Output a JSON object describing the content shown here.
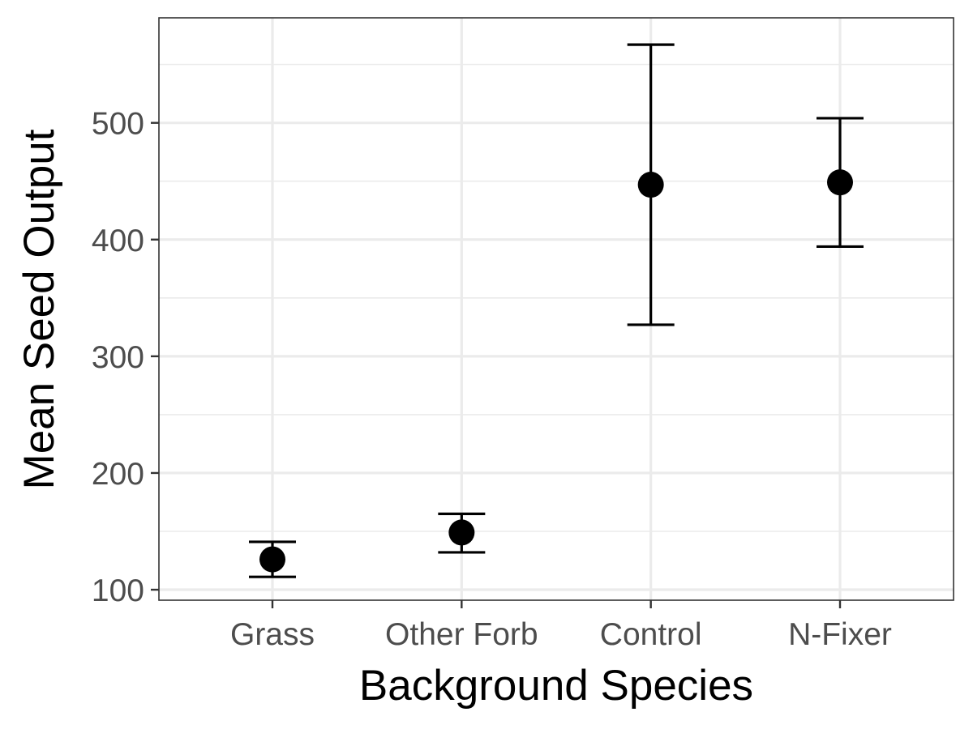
{
  "chart_data": {
    "type": "scatter",
    "subtype": "point-with-error-bars",
    "xlabel": "Background Species",
    "ylabel": "Mean Seed Output",
    "categories": [
      "Grass",
      "Other Forb",
      "Control",
      "N-Fixer"
    ],
    "points": [
      {
        "category": "Grass",
        "mean": 126,
        "lower": 111,
        "upper": 141
      },
      {
        "category": "Other Forb",
        "mean": 149,
        "lower": 132,
        "upper": 165
      },
      {
        "category": "Control",
        "mean": 447,
        "lower": 327,
        "upper": 567
      },
      {
        "category": "N-Fixer",
        "mean": 449,
        "lower": 394,
        "upper": 504
      }
    ],
    "y_ticks": [
      100,
      200,
      300,
      400,
      500
    ],
    "y_tick_labels": [
      "100",
      "200",
      "300",
      "400",
      "500"
    ],
    "ylim": [
      91,
      590
    ],
    "grid": true,
    "minor_grid": true,
    "colors": {
      "point": "#000000",
      "grid": "#ebebeb",
      "panel_border": "#333333",
      "tick_label": "#4d4d4d"
    }
  }
}
